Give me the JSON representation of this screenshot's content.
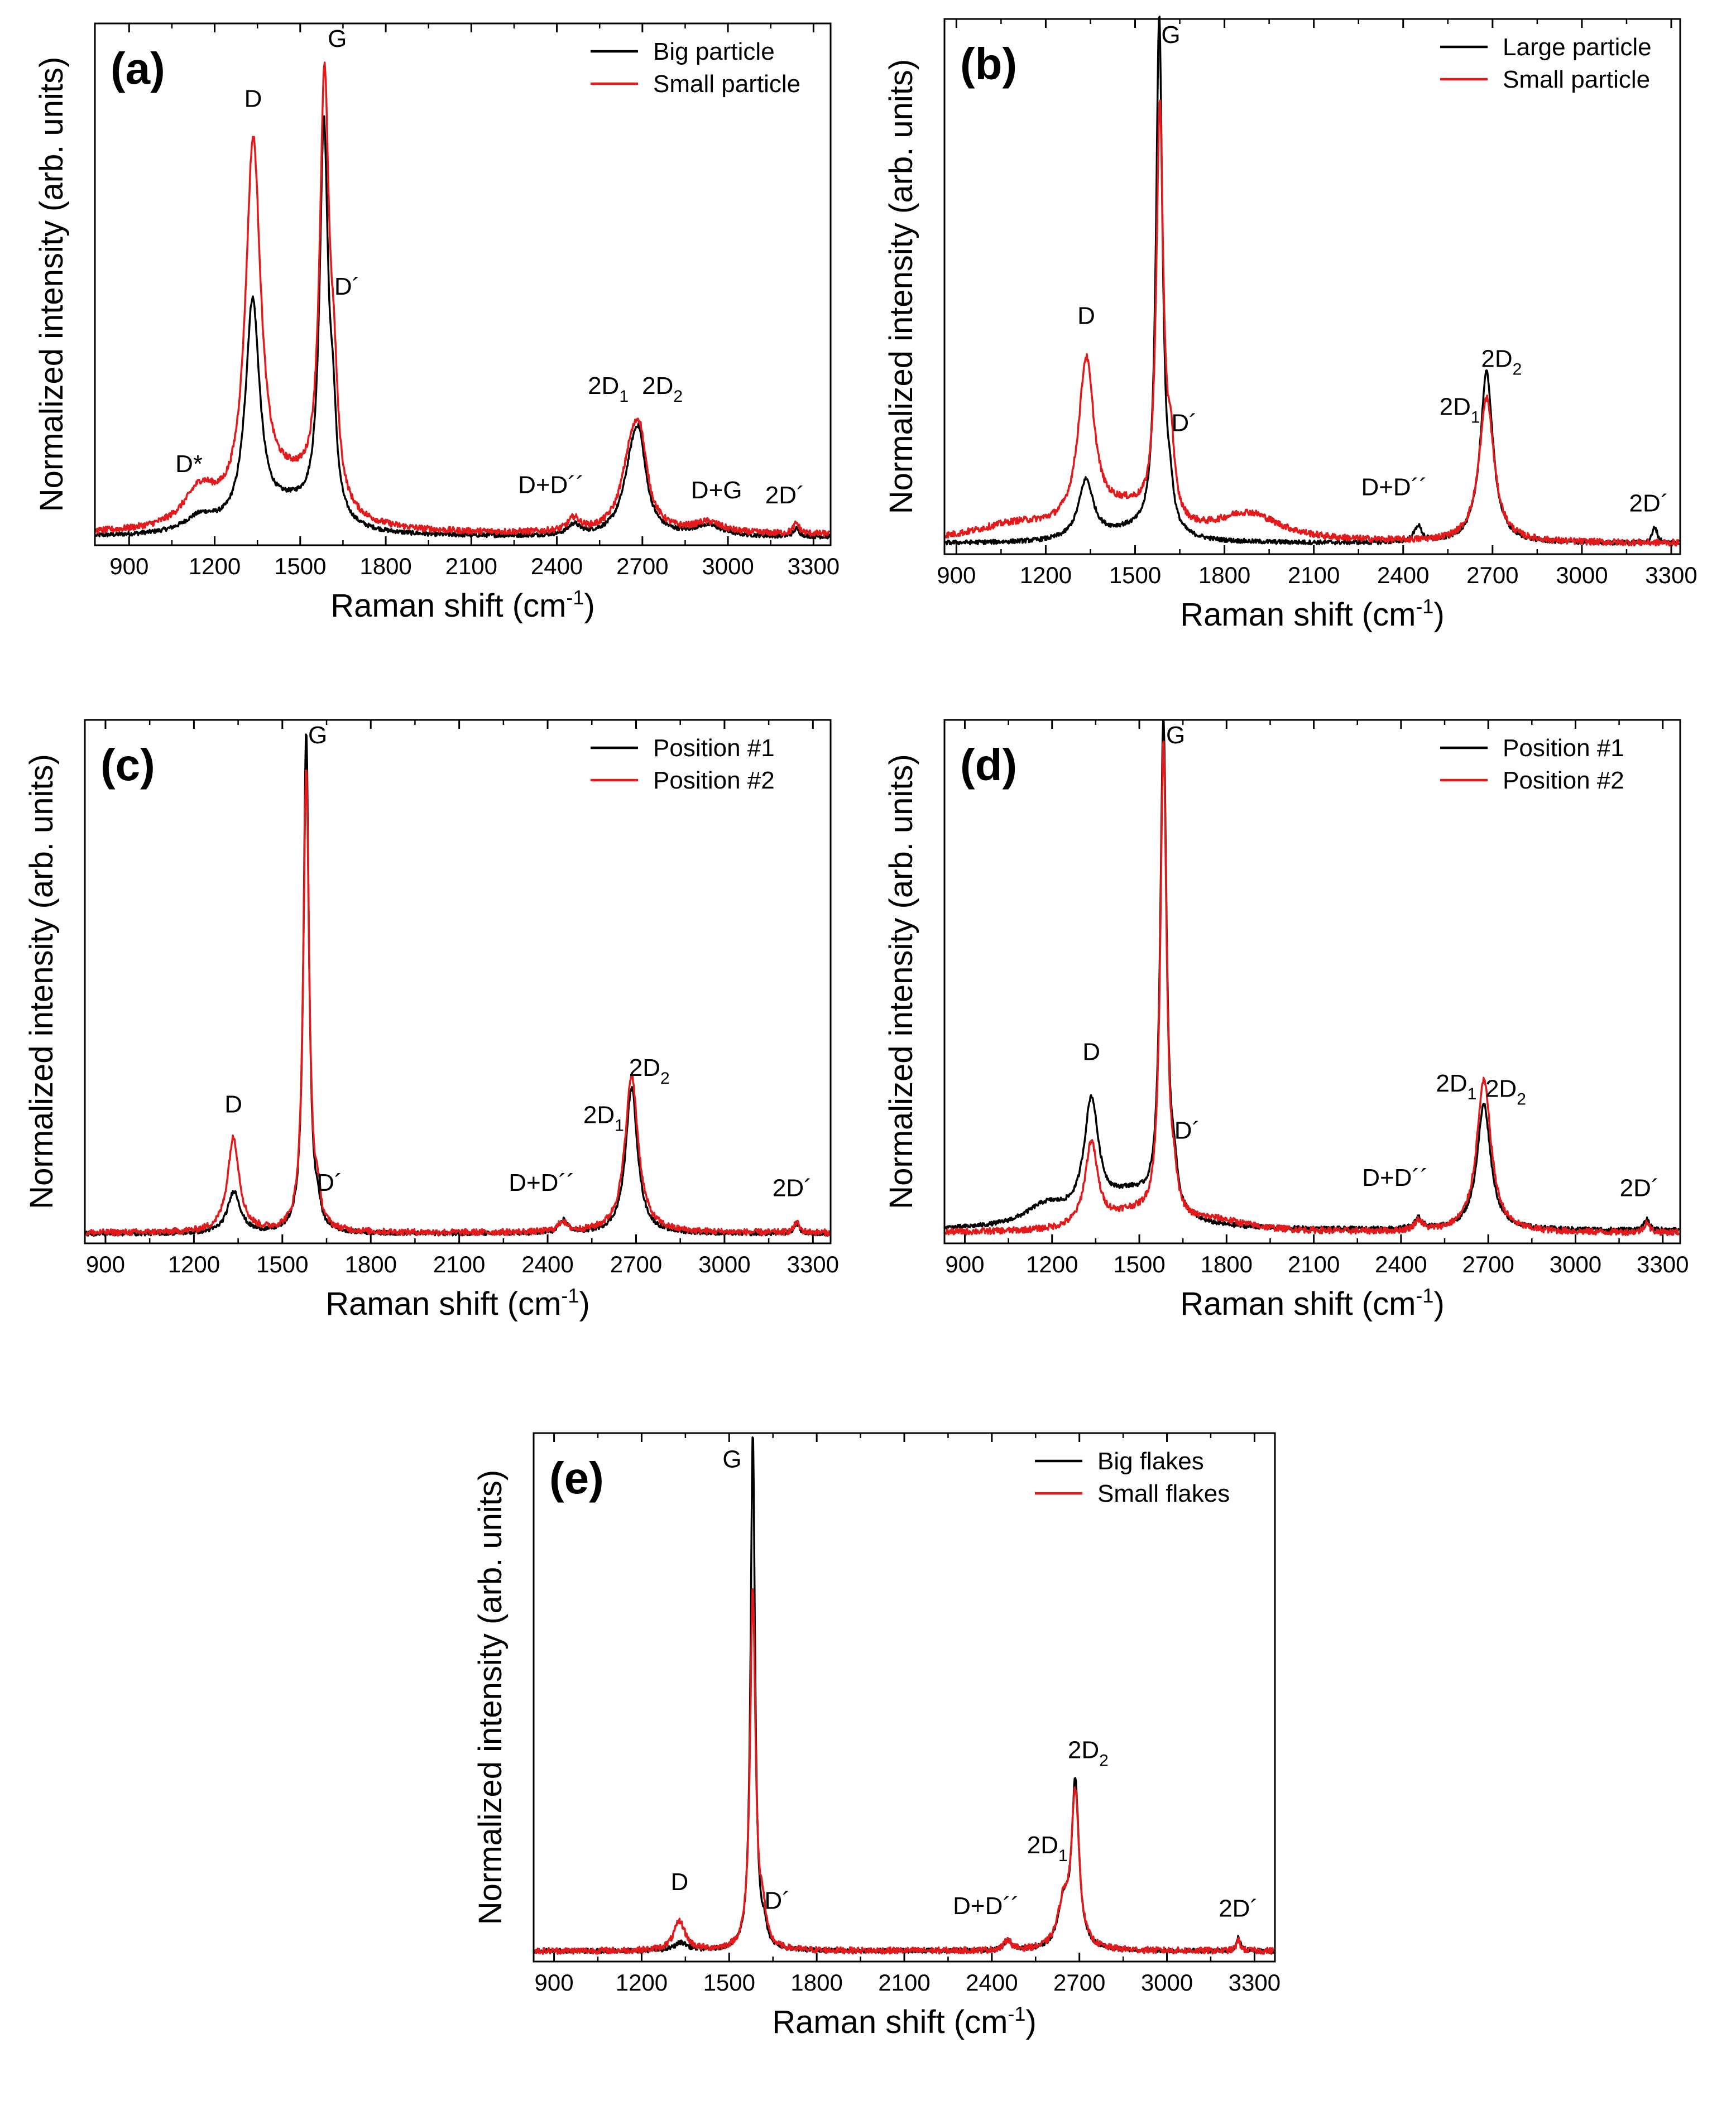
{
  "figure": {
    "colors": {
      "series1": "#000000",
      "series2": "#e31a1c",
      "axis": "#000000"
    }
  },
  "chart_data": [
    {
      "type": "line",
      "panel": "(a)",
      "xlabel": "Raman shift (cm",
      "xlabel_sup": "-1",
      "xlabel_close": ")",
      "ylabel": "Normalized intensity (arb. units)",
      "xlim": [
        780,
        3360
      ],
      "ylim": [
        0,
        1.0
      ],
      "xticks": [
        "900",
        "1200",
        "1500",
        "1800",
        "2100",
        "2400",
        "2700",
        "3000",
        "3300"
      ],
      "legend_position": "top-right",
      "series": [
        {
          "name": "Big particle",
          "color": "#000000",
          "baseline": 0.015,
          "peaks": [
            {
              "x": 1150,
              "h": 0.03,
              "w": 70
            },
            {
              "x": 1333,
              "h": 0.43,
              "w": 30
            },
            {
              "x": 1470,
              "h": 0.05,
              "w": 120
            },
            {
              "x": 1583,
              "h": 0.75,
              "w": 18
            },
            {
              "x": 1615,
              "h": 0.14,
              "w": 14
            },
            {
              "x": 2460,
              "h": 0.02,
              "w": 25
            },
            {
              "x": 2665,
              "h": 0.12,
              "w": 40
            },
            {
              "x": 2690,
              "h": 0.12,
              "w": 28
            },
            {
              "x": 2930,
              "h": 0.02,
              "w": 60
            },
            {
              "x": 3240,
              "h": 0.015,
              "w": 12
            }
          ]
        },
        {
          "name": "Small particle",
          "color": "#e31a1c",
          "baseline": 0.02,
          "peaks": [
            {
              "x": 1150,
              "h": 0.07,
              "w": 70
            },
            {
              "x": 1335,
              "h": 0.71,
              "w": 32
            },
            {
              "x": 1470,
              "h": 0.08,
              "w": 130
            },
            {
              "x": 1585,
              "h": 0.81,
              "w": 20
            },
            {
              "x": 1618,
              "h": 0.17,
              "w": 16
            },
            {
              "x": 2460,
              "h": 0.025,
              "w": 25
            },
            {
              "x": 2660,
              "h": 0.13,
              "w": 42
            },
            {
              "x": 2692,
              "h": 0.13,
              "w": 30
            },
            {
              "x": 2930,
              "h": 0.02,
              "w": 60
            },
            {
              "x": 3240,
              "h": 0.02,
              "w": 12
            }
          ]
        }
      ],
      "annotations": [
        {
          "text": "D",
          "x": 1335,
          "y": 0.84
        },
        {
          "text": "G",
          "x": 1630,
          "y": 0.955
        },
        {
          "text": "D´",
          "x": 1665,
          "y": 0.48
        },
        {
          "text": "D*",
          "x": 1110,
          "y": 0.14
        },
        {
          "text": "D+D´´",
          "x": 2380,
          "y": 0.1
        },
        {
          "text": "2D",
          "sub": "1",
          "x": 2580,
          "y": 0.29
        },
        {
          "text": "2D",
          "sub": "2",
          "x": 2770,
          "y": 0.29
        },
        {
          "text": "D+G",
          "x": 2960,
          "y": 0.09
        },
        {
          "text": "2D´",
          "x": 3200,
          "y": 0.08
        }
      ]
    },
    {
      "type": "line",
      "panel": "(b)",
      "xlabel": "Raman shift (cm",
      "xlabel_sup": "-1",
      "xlabel_close": ")",
      "ylabel": "Normalized intensity (arb. units)",
      "xlim": [
        860,
        3330
      ],
      "ylim": [
        0,
        1.0
      ],
      "xticks": [
        "900",
        "1200",
        "1500",
        "1800",
        "2100",
        "2400",
        "2700",
        "3000",
        "3300"
      ],
      "legend_position": "top-right",
      "series": [
        {
          "name": "Large particle",
          "color": "#000000",
          "baseline": 0.02,
          "peaks": [
            {
              "x": 1335,
              "h": 0.11,
              "w": 30
            },
            {
              "x": 1480,
              "h": 0.02,
              "w": 120
            },
            {
              "x": 1581,
              "h": 0.97,
              "w": 13
            },
            {
              "x": 1618,
              "h": 0.05,
              "w": 12
            },
            {
              "x": 2450,
              "h": 0.03,
              "w": 15
            },
            {
              "x": 2680,
              "h": 0.32,
              "w": 26
            },
            {
              "x": 3245,
              "h": 0.03,
              "w": 10
            }
          ]
        },
        {
          "name": "Small particle",
          "color": "#e31a1c",
          "baseline": 0.02,
          "peaks": [
            {
              "x": 1100,
              "h": 0.03,
              "w": 180
            },
            {
              "x": 1336,
              "h": 0.31,
              "w": 32
            },
            {
              "x": 1470,
              "h": 0.05,
              "w": 120
            },
            {
              "x": 1583,
              "h": 0.77,
              "w": 14
            },
            {
              "x": 1620,
              "h": 0.12,
              "w": 14
            },
            {
              "x": 1880,
              "h": 0.05,
              "w": 130
            },
            {
              "x": 2680,
              "h": 0.27,
              "w": 30
            }
          ]
        }
      ],
      "annotations": [
        {
          "text": "G",
          "x": 1620,
          "y": 0.955
        },
        {
          "text": "D",
          "x": 1336,
          "y": 0.43
        },
        {
          "text": "D´",
          "x": 1665,
          "y": 0.23
        },
        {
          "text": "D+D´´",
          "x": 2370,
          "y": 0.11
        },
        {
          "text": "2D",
          "sub": "1",
          "x": 2590,
          "y": 0.26
        },
        {
          "text": "2D",
          "sub": "2",
          "x": 2730,
          "y": 0.35
        },
        {
          "text": "2D´",
          "x": 3225,
          "y": 0.08
        }
      ]
    },
    {
      "type": "line",
      "panel": "(c)",
      "xlabel": "Raman shift (cm",
      "xlabel_sup": "-1",
      "xlabel_close": ")",
      "ylabel": "Normalized intensity (arb. units)",
      "xlim": [
        830,
        3360
      ],
      "ylim": [
        0,
        1.0
      ],
      "xticks": [
        "900",
        "1200",
        "1500",
        "1800",
        "2100",
        "2400",
        "2700",
        "3000",
        "3300"
      ],
      "legend_position": "top-right",
      "series": [
        {
          "name": "Position #1",
          "color": "#000000",
          "baseline": 0.018,
          "peaks": [
            {
              "x": 1336,
              "h": 0.08,
              "w": 26
            },
            {
              "x": 1581,
              "h": 0.96,
              "w": 11
            },
            {
              "x": 1620,
              "h": 0.03,
              "w": 10
            },
            {
              "x": 2455,
              "h": 0.025,
              "w": 16
            },
            {
              "x": 2685,
              "h": 0.28,
              "w": 24
            },
            {
              "x": 3245,
              "h": 0.02,
              "w": 10
            }
          ]
        },
        {
          "name": "Position #2",
          "color": "#e31a1c",
          "baseline": 0.02,
          "peaks": [
            {
              "x": 1334,
              "h": 0.18,
              "w": 24
            },
            {
              "x": 1581,
              "h": 0.88,
              "w": 12
            },
            {
              "x": 1620,
              "h": 0.05,
              "w": 10
            },
            {
              "x": 2450,
              "h": 0.02,
              "w": 16
            },
            {
              "x": 2685,
              "h": 0.3,
              "w": 27
            },
            {
              "x": 3245,
              "h": 0.02,
              "w": 10
            }
          ]
        }
      ],
      "annotations": [
        {
          "text": "G",
          "x": 1620,
          "y": 0.955
        },
        {
          "text": "D",
          "x": 1334,
          "y": 0.25
        },
        {
          "text": "D´",
          "x": 1660,
          "y": 0.1
        },
        {
          "text": "D+D´´",
          "x": 2380,
          "y": 0.1
        },
        {
          "text": "2D",
          "sub": "1",
          "x": 2590,
          "y": 0.23
        },
        {
          "text": "2D",
          "sub": "2",
          "x": 2745,
          "y": 0.32
        },
        {
          "text": "2D´",
          "x": 3230,
          "y": 0.09
        }
      ]
    },
    {
      "type": "line",
      "panel": "(d)",
      "xlabel": "Raman shift (cm",
      "xlabel_sup": "-1",
      "xlabel_close": ")",
      "ylabel": "Normalized intensity (arb. units)",
      "xlim": [
        830,
        3360
      ],
      "ylim": [
        0,
        1.0
      ],
      "xticks": [
        "900",
        "1200",
        "1500",
        "1800",
        "2100",
        "2400",
        "2700",
        "3000",
        "3300"
      ],
      "legend_position": "top-right",
      "series": [
        {
          "name": "Position #1",
          "color": "#000000",
          "baseline": 0.025,
          "peaks": [
            {
              "x": 1180,
              "h": 0.04,
              "w": 90
            },
            {
              "x": 1335,
              "h": 0.22,
              "w": 30
            },
            {
              "x": 1470,
              "h": 0.06,
              "w": 110
            },
            {
              "x": 1583,
              "h": 0.94,
              "w": 13
            },
            {
              "x": 1620,
              "h": 0.06,
              "w": 12
            },
            {
              "x": 2460,
              "h": 0.02,
              "w": 16
            },
            {
              "x": 2685,
              "h": 0.24,
              "w": 28
            },
            {
              "x": 3245,
              "h": 0.02,
              "w": 10
            }
          ]
        },
        {
          "name": "Position #2",
          "color": "#e31a1c",
          "baseline": 0.02,
          "peaks": [
            {
              "x": 1335,
              "h": 0.16,
              "w": 26
            },
            {
              "x": 1470,
              "h": 0.03,
              "w": 110
            },
            {
              "x": 1583,
              "h": 0.91,
              "w": 13
            },
            {
              "x": 1620,
              "h": 0.05,
              "w": 12
            },
            {
              "x": 1760,
              "h": 0.02,
              "w": 140
            },
            {
              "x": 2460,
              "h": 0.02,
              "w": 16
            },
            {
              "x": 2685,
              "h": 0.29,
              "w": 30
            },
            {
              "x": 3245,
              "h": 0.02,
              "w": 10
            }
          ]
        }
      ],
      "annotations": [
        {
          "text": "G",
          "x": 1625,
          "y": 0.955
        },
        {
          "text": "D",
          "x": 1335,
          "y": 0.35
        },
        {
          "text": "D´",
          "x": 1665,
          "y": 0.2
        },
        {
          "text": "D+D´´",
          "x": 2380,
          "y": 0.11
        },
        {
          "text": "2D",
          "sub": "1",
          "x": 2590,
          "y": 0.29
        },
        {
          "text": "2D",
          "sub": "2",
          "x": 2760,
          "y": 0.28
        },
        {
          "text": "2D´",
          "x": 3220,
          "y": 0.09
        }
      ]
    },
    {
      "type": "line",
      "panel": "(e)",
      "xlabel": "Raman shift (cm",
      "xlabel_sup": "-1",
      "xlabel_close": ")",
      "ylabel": "Normalized intensity (arb. units)",
      "xlim": [
        830,
        3370
      ],
      "ylim": [
        0,
        1.0
      ],
      "xticks": [
        "900",
        "1200",
        "1500",
        "1800",
        "2100",
        "2400",
        "2700",
        "3000",
        "3300"
      ],
      "legend_position": "top-right",
      "series": [
        {
          "name": "Big flakes",
          "color": "#000000",
          "baseline": 0.02,
          "peaks": [
            {
              "x": 1335,
              "h": 0.015,
              "w": 26
            },
            {
              "x": 1581,
              "h": 0.98,
              "w": 9
            },
            {
              "x": 1620,
              "h": 0.03,
              "w": 10
            },
            {
              "x": 2455,
              "h": 0.02,
              "w": 14
            },
            {
              "x": 2645,
              "h": 0.08,
              "w": 22
            },
            {
              "x": 2686,
              "h": 0.31,
              "w": 15
            },
            {
              "x": 3245,
              "h": 0.025,
              "w": 8
            }
          ]
        },
        {
          "name": "Small flakes",
          "color": "#e31a1c",
          "baseline": 0.02,
          "peaks": [
            {
              "x": 1330,
              "h": 0.055,
              "w": 24
            },
            {
              "x": 1581,
              "h": 0.68,
              "w": 11
            },
            {
              "x": 1615,
              "h": 0.06,
              "w": 12
            },
            {
              "x": 2455,
              "h": 0.02,
              "w": 14
            },
            {
              "x": 2645,
              "h": 0.08,
              "w": 24
            },
            {
              "x": 2686,
              "h": 0.29,
              "w": 16
            },
            {
              "x": 3245,
              "h": 0.02,
              "w": 8
            }
          ]
        }
      ],
      "annotations": [
        {
          "text": "G",
          "x": 1510,
          "y": 0.935
        },
        {
          "text": "D",
          "x": 1330,
          "y": 0.135
        },
        {
          "text": "D´",
          "x": 1665,
          "y": 0.1
        },
        {
          "text": "D+D´´",
          "x": 2380,
          "y": 0.09
        },
        {
          "text": "2D",
          "sub": "1",
          "x": 2590,
          "y": 0.205
        },
        {
          "text": "2D",
          "sub": "2",
          "x": 2730,
          "y": 0.385
        },
        {
          "text": "2D´",
          "x": 3245,
          "y": 0.085
        }
      ]
    }
  ]
}
